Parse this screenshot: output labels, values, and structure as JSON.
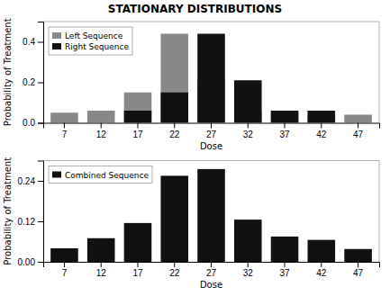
{
  "chart_data": [
    {
      "type": "bar",
      "title": "STATIONARY DISTRIBUTIONS",
      "categories": [
        "7",
        "12",
        "17",
        "22",
        "27",
        "32",
        "37",
        "42",
        "47"
      ],
      "series": [
        {
          "name": "Left Sequence",
          "color": "#888888",
          "values": [
            0.05,
            0.06,
            0.15,
            0.44,
            0.21,
            0.06,
            0.05,
            0.04,
            0.04
          ]
        },
        {
          "name": "Right Sequence",
          "color": "#111111",
          "values": [
            0.0,
            0.0,
            0.06,
            0.15,
            0.44,
            0.21,
            0.06,
            0.06,
            0.0
          ]
        }
      ],
      "xlabel": "Dose",
      "ylabel": "Probability of Treatment",
      "ylim": [
        0,
        0.5
      ],
      "yticks": [
        {
          "value": 0.0,
          "label": "0.0"
        },
        0.2,
        0.4
      ],
      "legend": "upper left"
    },
    {
      "type": "bar",
      "categories": [
        "7",
        "12",
        "17",
        "22",
        "27",
        "32",
        "37",
        "42",
        "47"
      ],
      "series": [
        {
          "name": "Combined Sequence",
          "color": "#111111",
          "values": [
            0.04,
            0.07,
            0.115,
            0.255,
            0.275,
            0.125,
            0.075,
            0.065,
            0.038
          ]
        }
      ],
      "xlabel": "Dose",
      "ylabel": "Probability of Treatment",
      "ylim": [
        0,
        0.3
      ],
      "yticks": [
        {
          "value": 0.0,
          "label": "0.00"
        },
        0.12,
        0.24
      ],
      "legend": "upper left"
    }
  ]
}
